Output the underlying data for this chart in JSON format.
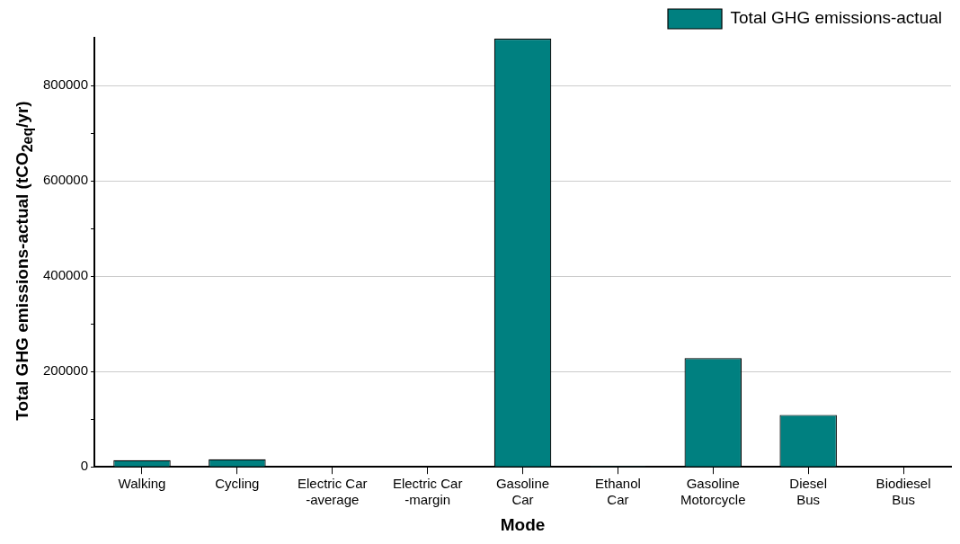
{
  "chart_data": {
    "type": "bar",
    "xlabel": "Mode",
    "ylabel": "Total GHG emissions-actual (tCO$_{2eq}$/yr)",
    "categories": [
      "Walking",
      "Cycling",
      "Electric Car\n-average",
      "Electric Car\n-margin",
      "Gasoline\nCar",
      "Ethanol\nCar",
      "Gasoline\nMotorcycle",
      "Diesel\nBus",
      "Biodiesel\nBus"
    ],
    "series": [
      {
        "name": "Total GHG emissions-actual",
        "color": "#008080",
        "values": [
          14000,
          16000,
          0,
          0,
          898000,
          2000,
          228000,
          109000,
          0
        ]
      }
    ],
    "ylim": [
      0,
      900000
    ],
    "yticks": [
      0,
      {
        "value": 100000,
        "label": null
      },
      200000,
      {
        "value": 300000,
        "label": null
      },
      400000,
      {
        "value": 500000,
        "label": null
      },
      600000,
      {
        "value": 700000,
        "label": null
      },
      800000
    ],
    "grid": "y",
    "legend": "top right"
  }
}
